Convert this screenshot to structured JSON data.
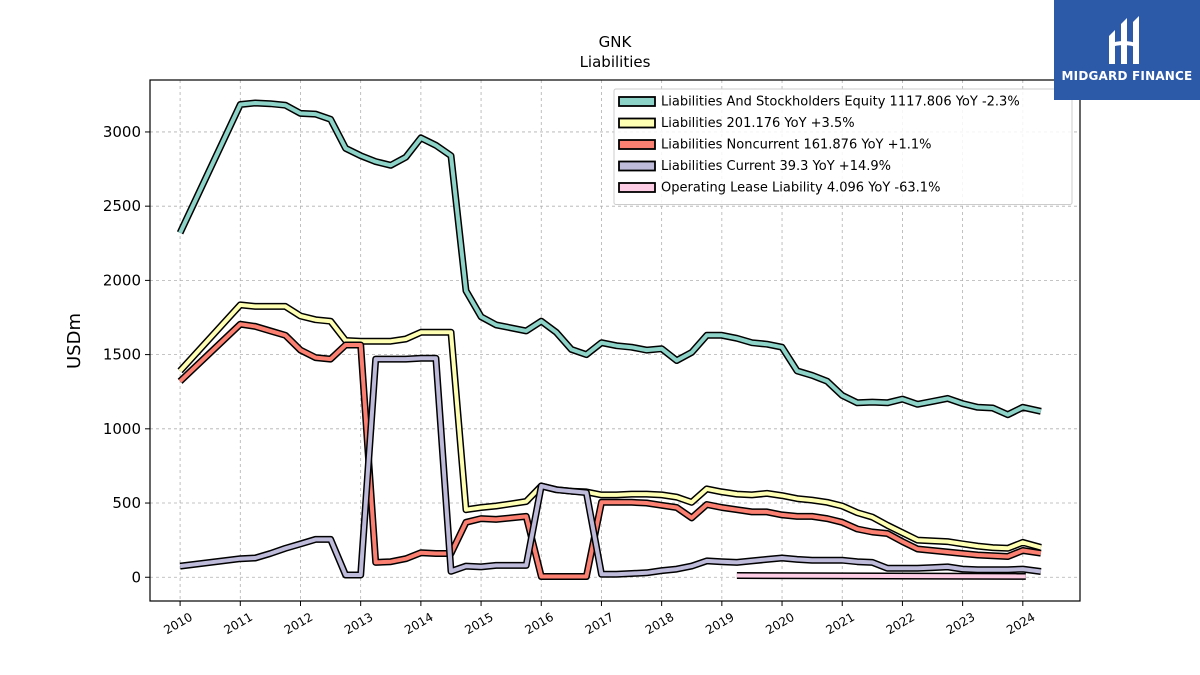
{
  "brand": {
    "name": "MIDGARD FINANCE",
    "logo_icon": "midgard-logo-icon",
    "bg_color": "#2d5aa8"
  },
  "chart_data": {
    "type": "line",
    "title": "GNK",
    "subtitle": "Liabilities",
    "xlabel": "",
    "ylabel": "USDm",
    "xlim": [
      2009.5,
      2024.95
    ],
    "ylim": [
      -160,
      3350
    ],
    "yticks": [
      0,
      500,
      1000,
      1500,
      2000,
      2500,
      3000
    ],
    "xticks": [
      "2010",
      "2011",
      "2012",
      "2013",
      "2014",
      "2015",
      "2016",
      "2017",
      "2018",
      "2019",
      "2020",
      "2021",
      "2022",
      "2023",
      "2024"
    ],
    "grid": true,
    "legend_position": "top-right",
    "series": [
      {
        "name": "Liabilities And Stockholders Equity",
        "legend": "Liabilities And Stockholders Equity  1117.806 YoY -2.3%",
        "color": "#8dd3c7",
        "points": [
          [
            2010.0,
            2320
          ],
          [
            2011.0,
            3185
          ],
          [
            2011.25,
            3195
          ],
          [
            2011.5,
            3190
          ],
          [
            2011.75,
            3180
          ],
          [
            2012.0,
            3125
          ],
          [
            2012.25,
            3120
          ],
          [
            2012.5,
            3085
          ],
          [
            2012.75,
            2890
          ],
          [
            2013.0,
            2840
          ],
          [
            2013.25,
            2800
          ],
          [
            2013.5,
            2775
          ],
          [
            2013.75,
            2830
          ],
          [
            2014.0,
            2960
          ],
          [
            2014.25,
            2910
          ],
          [
            2014.5,
            2840
          ],
          [
            2014.75,
            1930
          ],
          [
            2015.0,
            1755
          ],
          [
            2015.25,
            1700
          ],
          [
            2015.5,
            1680
          ],
          [
            2015.75,
            1660
          ],
          [
            2016.0,
            1725
          ],
          [
            2016.25,
            1650
          ],
          [
            2016.5,
            1535
          ],
          [
            2016.75,
            1500
          ],
          [
            2017.0,
            1580
          ],
          [
            2017.25,
            1560
          ],
          [
            2017.5,
            1550
          ],
          [
            2017.75,
            1530
          ],
          [
            2018.0,
            1540
          ],
          [
            2018.25,
            1460
          ],
          [
            2018.5,
            1515
          ],
          [
            2018.75,
            1630
          ],
          [
            2019.0,
            1630
          ],
          [
            2019.25,
            1610
          ],
          [
            2019.5,
            1580
          ],
          [
            2019.75,
            1570
          ],
          [
            2020.0,
            1550
          ],
          [
            2020.25,
            1390
          ],
          [
            2020.5,
            1360
          ],
          [
            2020.75,
            1320
          ],
          [
            2021.0,
            1225
          ],
          [
            2021.25,
            1175
          ],
          [
            2021.5,
            1180
          ],
          [
            2021.75,
            1175
          ],
          [
            2022.0,
            1200
          ],
          [
            2022.25,
            1165
          ],
          [
            2022.5,
            1185
          ],
          [
            2022.75,
            1205
          ],
          [
            2023.0,
            1170
          ],
          [
            2023.25,
            1145
          ],
          [
            2023.5,
            1140
          ],
          [
            2023.75,
            1095
          ],
          [
            2024.0,
            1145
          ],
          [
            2024.3,
            1118
          ]
        ]
      },
      {
        "name": "Liabilities",
        "legend": "Liabilities  201.176 YoY +3.5%",
        "color": "#ffffb3",
        "points": [
          [
            2010.0,
            1390
          ],
          [
            2011.0,
            1835
          ],
          [
            2011.25,
            1825
          ],
          [
            2011.5,
            1825
          ],
          [
            2011.75,
            1825
          ],
          [
            2012.0,
            1760
          ],
          [
            2012.25,
            1735
          ],
          [
            2012.5,
            1725
          ],
          [
            2012.75,
            1595
          ],
          [
            2013.0,
            1590
          ],
          [
            2013.25,
            1590
          ],
          [
            2013.5,
            1590
          ],
          [
            2013.75,
            1605
          ],
          [
            2014.0,
            1650
          ],
          [
            2014.25,
            1650
          ],
          [
            2014.5,
            1650
          ],
          [
            2014.75,
            455
          ],
          [
            2015.0,
            470
          ],
          [
            2015.25,
            480
          ],
          [
            2015.5,
            495
          ],
          [
            2015.75,
            510
          ],
          [
            2016.0,
            615
          ],
          [
            2016.25,
            590
          ],
          [
            2016.5,
            580
          ],
          [
            2016.75,
            575
          ],
          [
            2017.0,
            555
          ],
          [
            2017.25,
            555
          ],
          [
            2017.5,
            560
          ],
          [
            2017.75,
            560
          ],
          [
            2018.0,
            555
          ],
          [
            2018.25,
            540
          ],
          [
            2018.5,
            505
          ],
          [
            2018.75,
            595
          ],
          [
            2019.0,
            575
          ],
          [
            2019.25,
            560
          ],
          [
            2019.5,
            555
          ],
          [
            2019.75,
            565
          ],
          [
            2020.0,
            550
          ],
          [
            2020.25,
            530
          ],
          [
            2020.5,
            520
          ],
          [
            2020.75,
            505
          ],
          [
            2021.0,
            480
          ],
          [
            2021.25,
            435
          ],
          [
            2021.5,
            405
          ],
          [
            2021.75,
            350
          ],
          [
            2022.0,
            300
          ],
          [
            2022.25,
            250
          ],
          [
            2022.5,
            245
          ],
          [
            2022.75,
            240
          ],
          [
            2023.0,
            225
          ],
          [
            2023.25,
            210
          ],
          [
            2023.5,
            200
          ],
          [
            2023.75,
            195
          ],
          [
            2024.0,
            235
          ],
          [
            2024.3,
            201
          ]
        ]
      },
      {
        "name": "Liabilities Noncurrent",
        "legend": "Liabilities Noncurrent  161.876 YoY +1.1%",
        "color": "#fb8072",
        "points": [
          [
            2010.0,
            1320
          ],
          [
            2011.0,
            1705
          ],
          [
            2011.25,
            1690
          ],
          [
            2011.5,
            1660
          ],
          [
            2011.75,
            1630
          ],
          [
            2012.0,
            1530
          ],
          [
            2012.25,
            1480
          ],
          [
            2012.5,
            1470
          ],
          [
            2012.75,
            1565
          ],
          [
            2013.0,
            1565
          ],
          [
            2013.25,
            100
          ],
          [
            2013.5,
            105
          ],
          [
            2013.75,
            125
          ],
          [
            2014.0,
            165
          ],
          [
            2014.25,
            160
          ],
          [
            2014.5,
            160
          ],
          [
            2014.75,
            370
          ],
          [
            2015.0,
            395
          ],
          [
            2015.25,
            390
          ],
          [
            2015.5,
            400
          ],
          [
            2015.75,
            410
          ],
          [
            2016.0,
            5
          ],
          [
            2016.25,
            5
          ],
          [
            2016.5,
            5
          ],
          [
            2016.75,
            5
          ],
          [
            2017.0,
            505
          ],
          [
            2017.25,
            505
          ],
          [
            2017.5,
            505
          ],
          [
            2017.75,
            500
          ],
          [
            2018.0,
            485
          ],
          [
            2018.25,
            470
          ],
          [
            2018.5,
            400
          ],
          [
            2018.75,
            490
          ],
          [
            2019.0,
            470
          ],
          [
            2019.25,
            455
          ],
          [
            2019.5,
            440
          ],
          [
            2019.75,
            440
          ],
          [
            2020.0,
            420
          ],
          [
            2020.25,
            410
          ],
          [
            2020.5,
            410
          ],
          [
            2020.75,
            395
          ],
          [
            2021.0,
            370
          ],
          [
            2021.25,
            325
          ],
          [
            2021.5,
            305
          ],
          [
            2021.75,
            295
          ],
          [
            2022.0,
            240
          ],
          [
            2022.25,
            190
          ],
          [
            2022.5,
            180
          ],
          [
            2022.75,
            170
          ],
          [
            2023.0,
            160
          ],
          [
            2023.25,
            150
          ],
          [
            2023.5,
            145
          ],
          [
            2023.75,
            140
          ],
          [
            2024.0,
            180
          ],
          [
            2024.3,
            162
          ]
        ]
      },
      {
        "name": "Liabilities Current",
        "legend": "Liabilities Current  39.3 YoY +14.9%",
        "color": "#bebada",
        "points": [
          [
            2010.0,
            75
          ],
          [
            2011.0,
            125
          ],
          [
            2011.25,
            130
          ],
          [
            2011.5,
            160
          ],
          [
            2011.75,
            195
          ],
          [
            2012.0,
            225
          ],
          [
            2012.25,
            255
          ],
          [
            2012.5,
            255
          ],
          [
            2012.75,
            15
          ],
          [
            2013.0,
            15
          ],
          [
            2013.25,
            1470
          ],
          [
            2013.5,
            1470
          ],
          [
            2013.75,
            1470
          ],
          [
            2014.0,
            1475
          ],
          [
            2014.25,
            1475
          ],
          [
            2014.5,
            40
          ],
          [
            2014.75,
            75
          ],
          [
            2015.0,
            70
          ],
          [
            2015.25,
            80
          ],
          [
            2015.5,
            80
          ],
          [
            2015.75,
            80
          ],
          [
            2016.0,
            615
          ],
          [
            2016.25,
            590
          ],
          [
            2016.5,
            580
          ],
          [
            2016.75,
            570
          ],
          [
            2017.0,
            20
          ],
          [
            2017.25,
            20
          ],
          [
            2017.5,
            25
          ],
          [
            2017.75,
            30
          ],
          [
            2018.0,
            45
          ],
          [
            2018.25,
            55
          ],
          [
            2018.5,
            75
          ],
          [
            2018.75,
            110
          ],
          [
            2019.0,
            105
          ],
          [
            2019.25,
            100
          ],
          [
            2019.5,
            110
          ],
          [
            2019.75,
            120
          ],
          [
            2020.0,
            130
          ],
          [
            2020.25,
            120
          ],
          [
            2020.5,
            115
          ],
          [
            2020.75,
            115
          ],
          [
            2021.0,
            115
          ],
          [
            2021.25,
            105
          ],
          [
            2021.5,
            100
          ],
          [
            2021.75,
            60
          ],
          [
            2022.0,
            60
          ],
          [
            2022.25,
            60
          ],
          [
            2022.5,
            65
          ],
          [
            2022.75,
            70
          ],
          [
            2023.0,
            55
          ],
          [
            2023.25,
            50
          ],
          [
            2023.5,
            50
          ],
          [
            2023.75,
            50
          ],
          [
            2024.0,
            55
          ],
          [
            2024.3,
            39
          ]
        ]
      },
      {
        "name": "Operating Lease Liability",
        "legend": "Operating Lease Liability  4.096 YoY -63.1%",
        "color": "#fccde5",
        "points": [
          [
            2019.25,
            12
          ],
          [
            2024.05,
            6
          ]
        ]
      }
    ]
  }
}
